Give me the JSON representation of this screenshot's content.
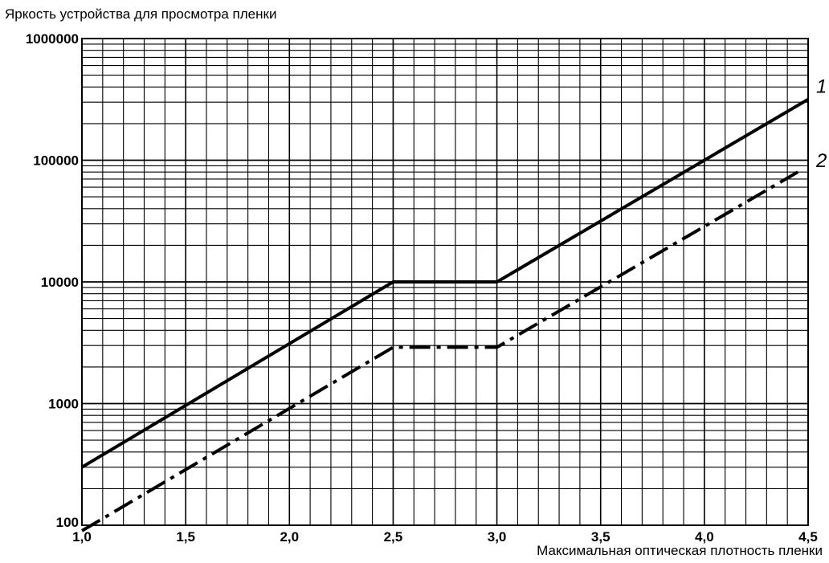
{
  "chart_data": {
    "type": "line",
    "ylabel": "Яркость устройства для просмотра пленки",
    "xlabel": "Максимальная оптическая плотность пленки",
    "y_scale": "log",
    "ylim": [
      100,
      1000000
    ],
    "xlim": [
      1.0,
      4.5
    ],
    "x_tick_labels": [
      "1,0",
      "1,5",
      "2,0",
      "2,5",
      "3,0",
      "3,5",
      "4,0",
      "4,5"
    ],
    "y_tick_labels": [
      "100",
      "1000",
      "10000",
      "100000",
      "1000000"
    ],
    "grid": true,
    "series": [
      {
        "name": "1",
        "style": "solid",
        "points": [
          [
            1.0,
            300
          ],
          [
            2.5,
            10000
          ],
          [
            3.0,
            10000
          ],
          [
            4.5,
            316228
          ]
        ]
      },
      {
        "name": "2",
        "style": "dash-dot",
        "points": [
          [
            1.0,
            90
          ],
          [
            2.5,
            2900
          ],
          [
            3.0,
            2900
          ],
          [
            4.45,
            80000
          ]
        ]
      }
    ]
  }
}
